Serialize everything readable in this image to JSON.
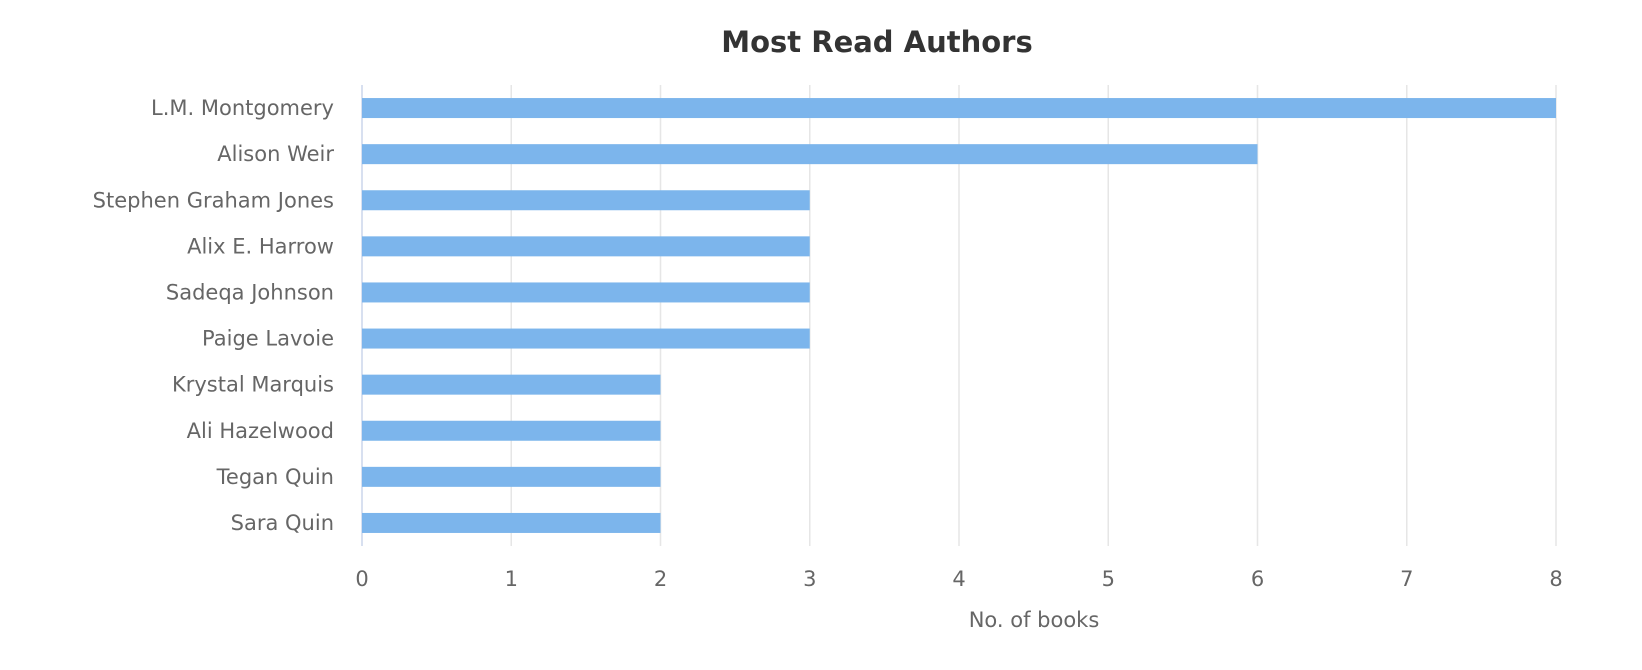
{
  "chart_data": {
    "type": "bar",
    "orientation": "horizontal",
    "title": "Most Read Authors",
    "xlabel": "No. of books",
    "ylabel": "",
    "xlim": [
      0,
      8
    ],
    "xticks": [
      "0",
      "1",
      "2",
      "3",
      "4",
      "5",
      "6",
      "7",
      "8"
    ],
    "categories": [
      "L.M. Montgomery",
      "Alison Weir",
      "Stephen Graham Jones",
      "Alix E. Harrow",
      "Sadeqa Johnson",
      "Paige Lavoie",
      "Krystal Marquis",
      "Ali Hazelwood",
      "Tegan Quin",
      "Sara Quin"
    ],
    "values": [
      8,
      6,
      3,
      3,
      3,
      3,
      2,
      2,
      2,
      2
    ],
    "grid": true,
    "legend": "none",
    "colors": {
      "bar": "#7cb5ec",
      "grid": "#e6e6e6",
      "axis_line": "#ccd6eb",
      "title": "#333333",
      "label": "#666666"
    }
  }
}
